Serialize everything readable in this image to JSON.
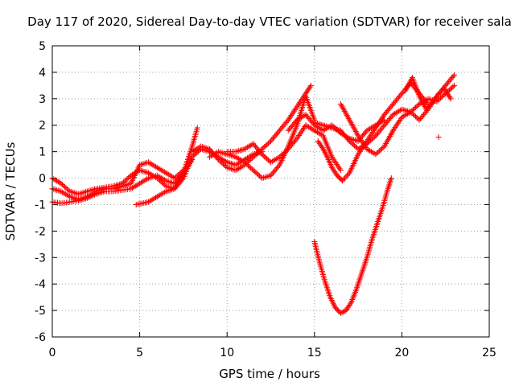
{
  "chart_data": {
    "type": "scatter",
    "title": "Day 117 of 2020, Sidereal Day-to-day VTEC variation (SDTVAR) for receiver sala",
    "xlabel": "GPS time / hours",
    "ylabel": "SDTVAR / TECUs",
    "xlim": [
      0,
      25
    ],
    "ylim": [
      -6,
      5
    ],
    "xticks": [
      "0",
      "5",
      "10",
      "15",
      "20",
      "25"
    ],
    "yticks": [
      "-6",
      "-5",
      "-4",
      "-3",
      "-2",
      "-1",
      "0",
      "1",
      "2",
      "3",
      "4",
      "5"
    ],
    "grid": true,
    "marker": "+",
    "color": "#ff0000",
    "series": [
      {
        "x": [
          0.0,
          0.5,
          1.0,
          1.5,
          2.0,
          2.5,
          3.0,
          3.5,
          4.0,
          4.5,
          5.0,
          5.5,
          6.0,
          6.5,
          7.0,
          7.5,
          8.0,
          8.3
        ],
        "y": [
          0.0,
          -0.2,
          -0.5,
          -0.6,
          -0.5,
          -0.4,
          -0.35,
          -0.3,
          -0.2,
          0.1,
          0.3,
          0.2,
          0.0,
          -0.3,
          -0.4,
          0.2,
          1.2,
          1.9
        ]
      },
      {
        "x": [
          0.0,
          0.5,
          1.0,
          1.5,
          2.0,
          2.5,
          3.0,
          3.5,
          4.0,
          4.5,
          5.0,
          5.5,
          6.0,
          6.5,
          7.0,
          7.5
        ],
        "y": [
          -0.4,
          -0.5,
          -0.7,
          -0.8,
          -0.7,
          -0.5,
          -0.4,
          -0.4,
          -0.3,
          -0.2,
          0.5,
          0.6,
          0.4,
          0.2,
          0.0,
          0.3
        ]
      },
      {
        "x": [
          0.0,
          0.5,
          1.0,
          1.5,
          2.0,
          2.5,
          3.0,
          3.5,
          4.0,
          4.5,
          5.0,
          5.5,
          6.0,
          6.5,
          7.0,
          7.5,
          8.0
        ],
        "y": [
          -0.9,
          -0.95,
          -0.9,
          -0.85,
          -0.75,
          -0.6,
          -0.5,
          -0.5,
          -0.45,
          -0.4,
          -0.2,
          0.0,
          0.1,
          -0.1,
          -0.2,
          0.2,
          0.7
        ]
      },
      {
        "x": [
          4.8,
          5.5,
          6.0,
          6.5,
          7.0,
          7.5,
          8.0,
          8.5,
          9.0,
          9.5,
          10.0,
          10.5,
          11.0,
          11.5,
          12.0
        ],
        "y": [
          -1.0,
          -0.9,
          -0.7,
          -0.5,
          -0.4,
          0.0,
          0.8,
          1.1,
          1.0,
          0.8,
          0.6,
          0.5,
          0.7,
          0.9,
          1.0
        ]
      },
      {
        "x": [
          8.0,
          8.5,
          9.0,
          9.5,
          10.0,
          10.5,
          11.0,
          11.5,
          12.0,
          12.5,
          13.0,
          13.5,
          14.0,
          14.5,
          14.8
        ],
        "y": [
          1.0,
          1.2,
          1.1,
          0.7,
          0.4,
          0.3,
          0.5,
          0.8,
          1.1,
          1.4,
          1.8,
          2.2,
          2.7,
          3.2,
          3.5
        ]
      },
      {
        "x": [
          9.0,
          9.5,
          10.0,
          10.5,
          11.0,
          11.5,
          12.0,
          12.5,
          13.0,
          13.5,
          14.0,
          14.5,
          15.0
        ],
        "y": [
          0.8,
          1.0,
          0.9,
          0.8,
          0.6,
          0.3,
          0.0,
          0.1,
          0.5,
          1.2,
          2.0,
          3.1,
          2.2
        ]
      },
      {
        "x": [
          10.0,
          10.5,
          11.0,
          11.5,
          12.0,
          12.5,
          13.0,
          13.5,
          14.0,
          14.5,
          15.0,
          15.5,
          16.0,
          16.5
        ],
        "y": [
          1.0,
          1.0,
          1.1,
          1.3,
          0.9,
          0.6,
          0.8,
          1.1,
          1.5,
          2.0,
          1.8,
          1.6,
          0.8,
          0.3
        ]
      },
      {
        "x": [
          13.5,
          14.0,
          14.5,
          15.0,
          15.5,
          16.0,
          16.5,
          17.0,
          17.5,
          18.0,
          18.5,
          19.0
        ],
        "y": [
          1.8,
          2.2,
          2.4,
          2.0,
          1.8,
          2.0,
          1.7,
          1.5,
          1.4,
          1.8,
          2.0,
          2.2
        ]
      },
      {
        "x": [
          15.0,
          15.5,
          16.0,
          16.5,
          17.0,
          17.5,
          18.0,
          18.5,
          19.0,
          19.5,
          20.0,
          20.5,
          21.0,
          21.5,
          22.0,
          22.5,
          23.0
        ],
        "y": [
          2.1,
          2.0,
          1.9,
          1.8,
          1.4,
          1.1,
          1.3,
          1.6,
          2.0,
          2.4,
          2.6,
          2.5,
          2.8,
          3.0,
          2.9,
          3.2,
          3.5
        ]
      },
      {
        "x": [
          16.5,
          17.0,
          17.5,
          18.0,
          18.5,
          19.0,
          19.5,
          20.0,
          20.5,
          21.0,
          21.5,
          22.0,
          22.5,
          23.0
        ],
        "y": [
          2.8,
          2.2,
          1.6,
          1.1,
          0.9,
          1.2,
          1.8,
          2.3,
          2.5,
          2.2,
          2.6,
          3.1,
          3.5,
          3.9
        ]
      },
      {
        "x": [
          15.2,
          15.5,
          15.8,
          16.0,
          16.3,
          16.6,
          17.0,
          17.5,
          18.0,
          18.5,
          19.0,
          19.5,
          20.0,
          20.5,
          21.0,
          21.5
        ],
        "y": [
          1.4,
          1.1,
          0.7,
          0.4,
          0.1,
          -0.1,
          0.2,
          0.9,
          1.4,
          1.9,
          2.4,
          2.8,
          3.2,
          3.6,
          3.2,
          2.8
        ]
      },
      {
        "x": [
          15.0,
          15.3,
          15.6,
          15.9,
          16.2,
          16.5,
          16.8,
          17.1,
          17.4,
          17.7,
          18.0,
          18.3,
          18.6,
          18.9,
          19.2,
          19.4
        ],
        "y": [
          -2.4,
          -3.2,
          -3.9,
          -4.5,
          -4.9,
          -5.1,
          -5.0,
          -4.7,
          -4.2,
          -3.6,
          -3.0,
          -2.3,
          -1.7,
          -1.1,
          -0.4,
          0.0
        ]
      },
      {
        "x": [
          20.2,
          20.6,
          21.0,
          21.4,
          21.8,
          22.0,
          22.4,
          22.8
        ],
        "y": [
          3.3,
          3.8,
          3.1,
          2.6,
          2.9,
          3.1,
          3.4,
          3.0
        ]
      },
      {
        "x": [
          22.1
        ],
        "y": [
          1.55
        ]
      }
    ]
  }
}
